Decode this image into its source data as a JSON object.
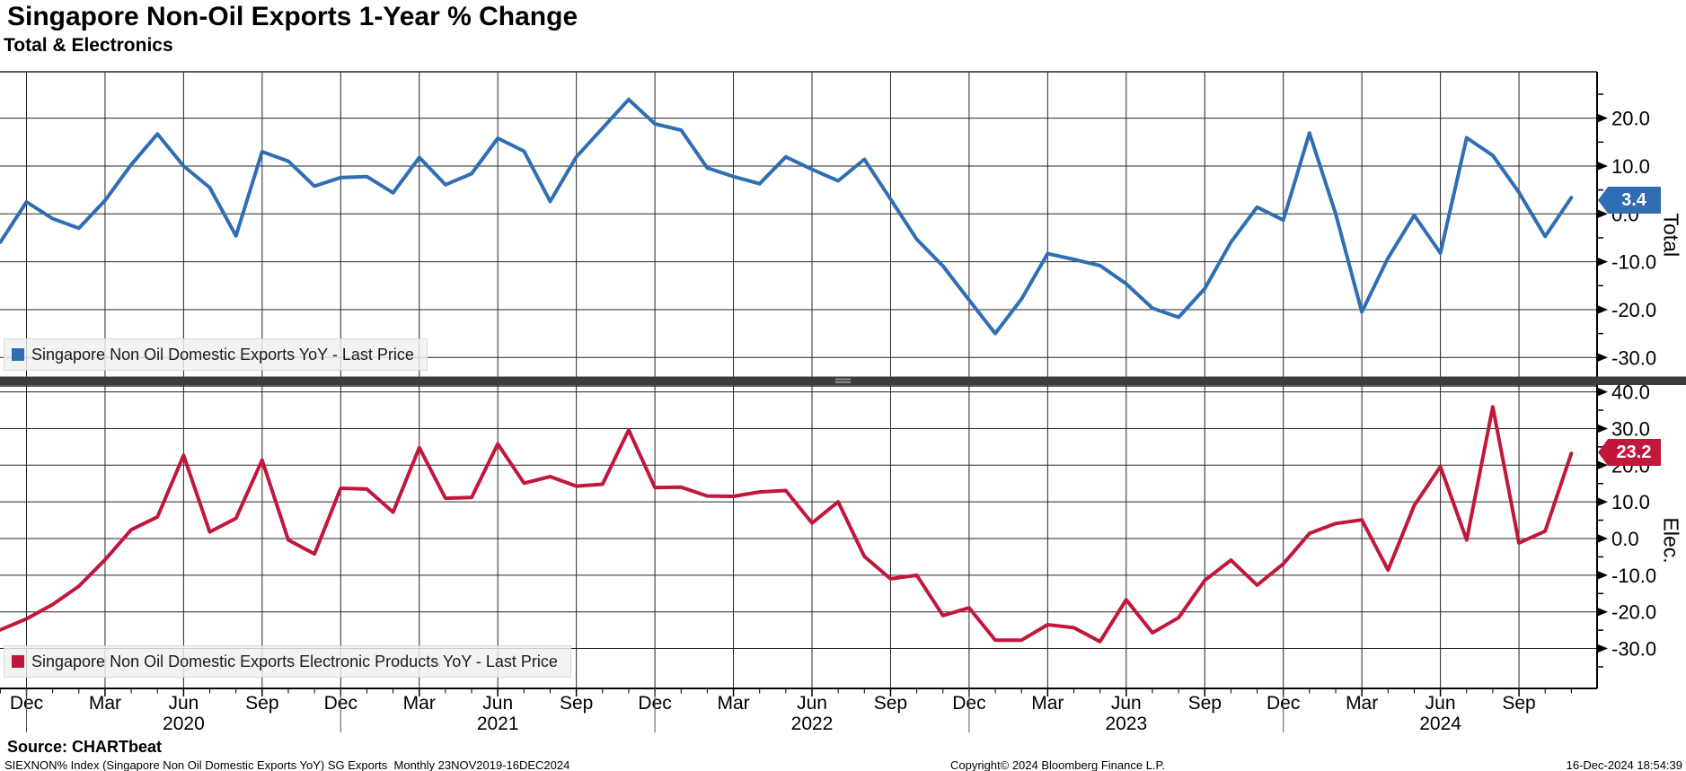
{
  "header": {
    "title": "Singapore Non-Oil Exports 1-Year % Change",
    "subtitle": "Total & Electronics"
  },
  "colors": {
    "total_line": "#2f6eb2",
    "total_box_border": "#1b4675",
    "elec_line": "#c1173b",
    "elec_box_border": "#7d0e26",
    "grid": "#262626",
    "divider": "#3d3d3d",
    "divider_handle": "#a0a0a0",
    "legend_bg": "#f0f0f0"
  },
  "top_panel": {
    "axis_title": "Total",
    "last_value_label": "3.4",
    "legend": "Singapore Non Oil Domestic Exports YoY - Last Price"
  },
  "bottom_panel": {
    "axis_title": "Elec.",
    "last_value_label": "23.2",
    "legend": "Singapore Non Oil Domestic Exports Electronic Products YoY - Last Price"
  },
  "footer": {
    "source": "Source: CHARTbeat",
    "description": "SIEXNON% Index (Singapore Non Oil Domestic Exports YoY) SG Exports  Monthly 23NOV2019-16DEC2024",
    "copyright": "Copyright© 2024 Bloomberg Finance L.P.",
    "datetime": "16-Dec-2024 18:54:39"
  },
  "chart_data": {
    "type": "line",
    "x_monthly": [
      "2019-11",
      "2019-12",
      "2020-01",
      "2020-02",
      "2020-03",
      "2020-04",
      "2020-05",
      "2020-06",
      "2020-07",
      "2020-08",
      "2020-09",
      "2020-10",
      "2020-11",
      "2020-12",
      "2021-01",
      "2021-02",
      "2021-03",
      "2021-04",
      "2021-05",
      "2021-06",
      "2021-07",
      "2021-08",
      "2021-09",
      "2021-10",
      "2021-11",
      "2021-12",
      "2022-01",
      "2022-02",
      "2022-03",
      "2022-04",
      "2022-05",
      "2022-06",
      "2022-07",
      "2022-08",
      "2022-09",
      "2022-10",
      "2022-11",
      "2022-12",
      "2023-01",
      "2023-02",
      "2023-03",
      "2023-04",
      "2023-05",
      "2023-06",
      "2023-07",
      "2023-08",
      "2023-09",
      "2023-10",
      "2023-11",
      "2023-12",
      "2024-01",
      "2024-02",
      "2024-03",
      "2024-04",
      "2024-05",
      "2024-06",
      "2024-07",
      "2024-08",
      "2024-09",
      "2024-10",
      "2024-11"
    ],
    "series": [
      {
        "name": "Singapore Non Oil Domestic Exports YoY - Last Price",
        "panel": "Total",
        "color": "#2f6eb2",
        "last_price": 3.4,
        "values": [
          -5.9,
          2.5,
          -1.0,
          -3.0,
          2.8,
          10.3,
          16.7,
          10.0,
          5.5,
          -4.6,
          13.0,
          11.0,
          5.8,
          7.6,
          7.8,
          4.4,
          11.8,
          6.1,
          8.4,
          15.8,
          13.1,
          2.6,
          11.9,
          17.9,
          23.9,
          18.8,
          17.5,
          9.6,
          7.8,
          6.3,
          11.9,
          9.3,
          6.9,
          11.4,
          3.1,
          -5.3,
          -10.9,
          -18.0,
          -25.0,
          -17.8,
          -8.3,
          -9.5,
          -10.8,
          -14.6,
          -19.7,
          -21.6,
          -15.6,
          -5.9,
          1.4,
          -1.3,
          16.9,
          0.0,
          -20.5,
          -9.2,
          -0.3,
          -8.2,
          15.9,
          12.2,
          4.5,
          -4.7,
          3.4
        ]
      },
      {
        "name": "Singapore Non Oil Domestic Exports Electronic Products YoY - Last Price",
        "panel": "Elec.",
        "color": "#c1173b",
        "last_price": 23.2,
        "values": [
          -24.9,
          -21.9,
          -18.0,
          -13.0,
          -5.8,
          2.4,
          5.9,
          22.7,
          1.8,
          5.5,
          21.4,
          -0.4,
          -4.2,
          13.7,
          13.5,
          7.2,
          24.8,
          11.0,
          11.2,
          25.8,
          15.1,
          16.9,
          14.3,
          14.8,
          29.6,
          13.9,
          14.0,
          11.6,
          11.5,
          12.7,
          13.1,
          4.2,
          10.0,
          -4.9,
          -11.0,
          -10.0,
          -21.0,
          -18.9,
          -27.7,
          -27.7,
          -23.5,
          -24.3,
          -28.1,
          -16.7,
          -25.7,
          -21.6,
          -11.4,
          -5.9,
          -12.7,
          -6.9,
          1.4,
          4.1,
          5.1,
          -8.6,
          9.0,
          19.6,
          -0.4,
          35.9,
          -1.2,
          2.0,
          23.2
        ]
      }
    ],
    "x_tick_labels": [
      "Dec",
      "Mar",
      "Jun",
      "Sep",
      "Dec",
      "Mar",
      "Jun",
      "Sep",
      "Dec",
      "Mar",
      "Jun",
      "Sep",
      "Dec",
      "Mar",
      "Jun",
      "Sep",
      "Dec",
      "Mar",
      "Jun",
      "Sep"
    ],
    "year_labels": [
      "2020",
      "2021",
      "2022",
      "2023",
      "2024"
    ],
    "top_axis": {
      "ylabel": "Total",
      "ticks": [
        20.0,
        10.0,
        0.0,
        -10.0,
        -20.0,
        -30.0
      ],
      "ylim": [
        -34.3,
        29.7
      ]
    },
    "bottom_axis": {
      "ylabel": "Elec.",
      "ticks": [
        40.0,
        30.0,
        20.0,
        10.0,
        0.0,
        -10.0,
        -20.0,
        -30.0
      ],
      "ylim": [
        -40.9,
        41.6
      ]
    },
    "grid": true,
    "legend_position": "inside-bottom-left"
  }
}
